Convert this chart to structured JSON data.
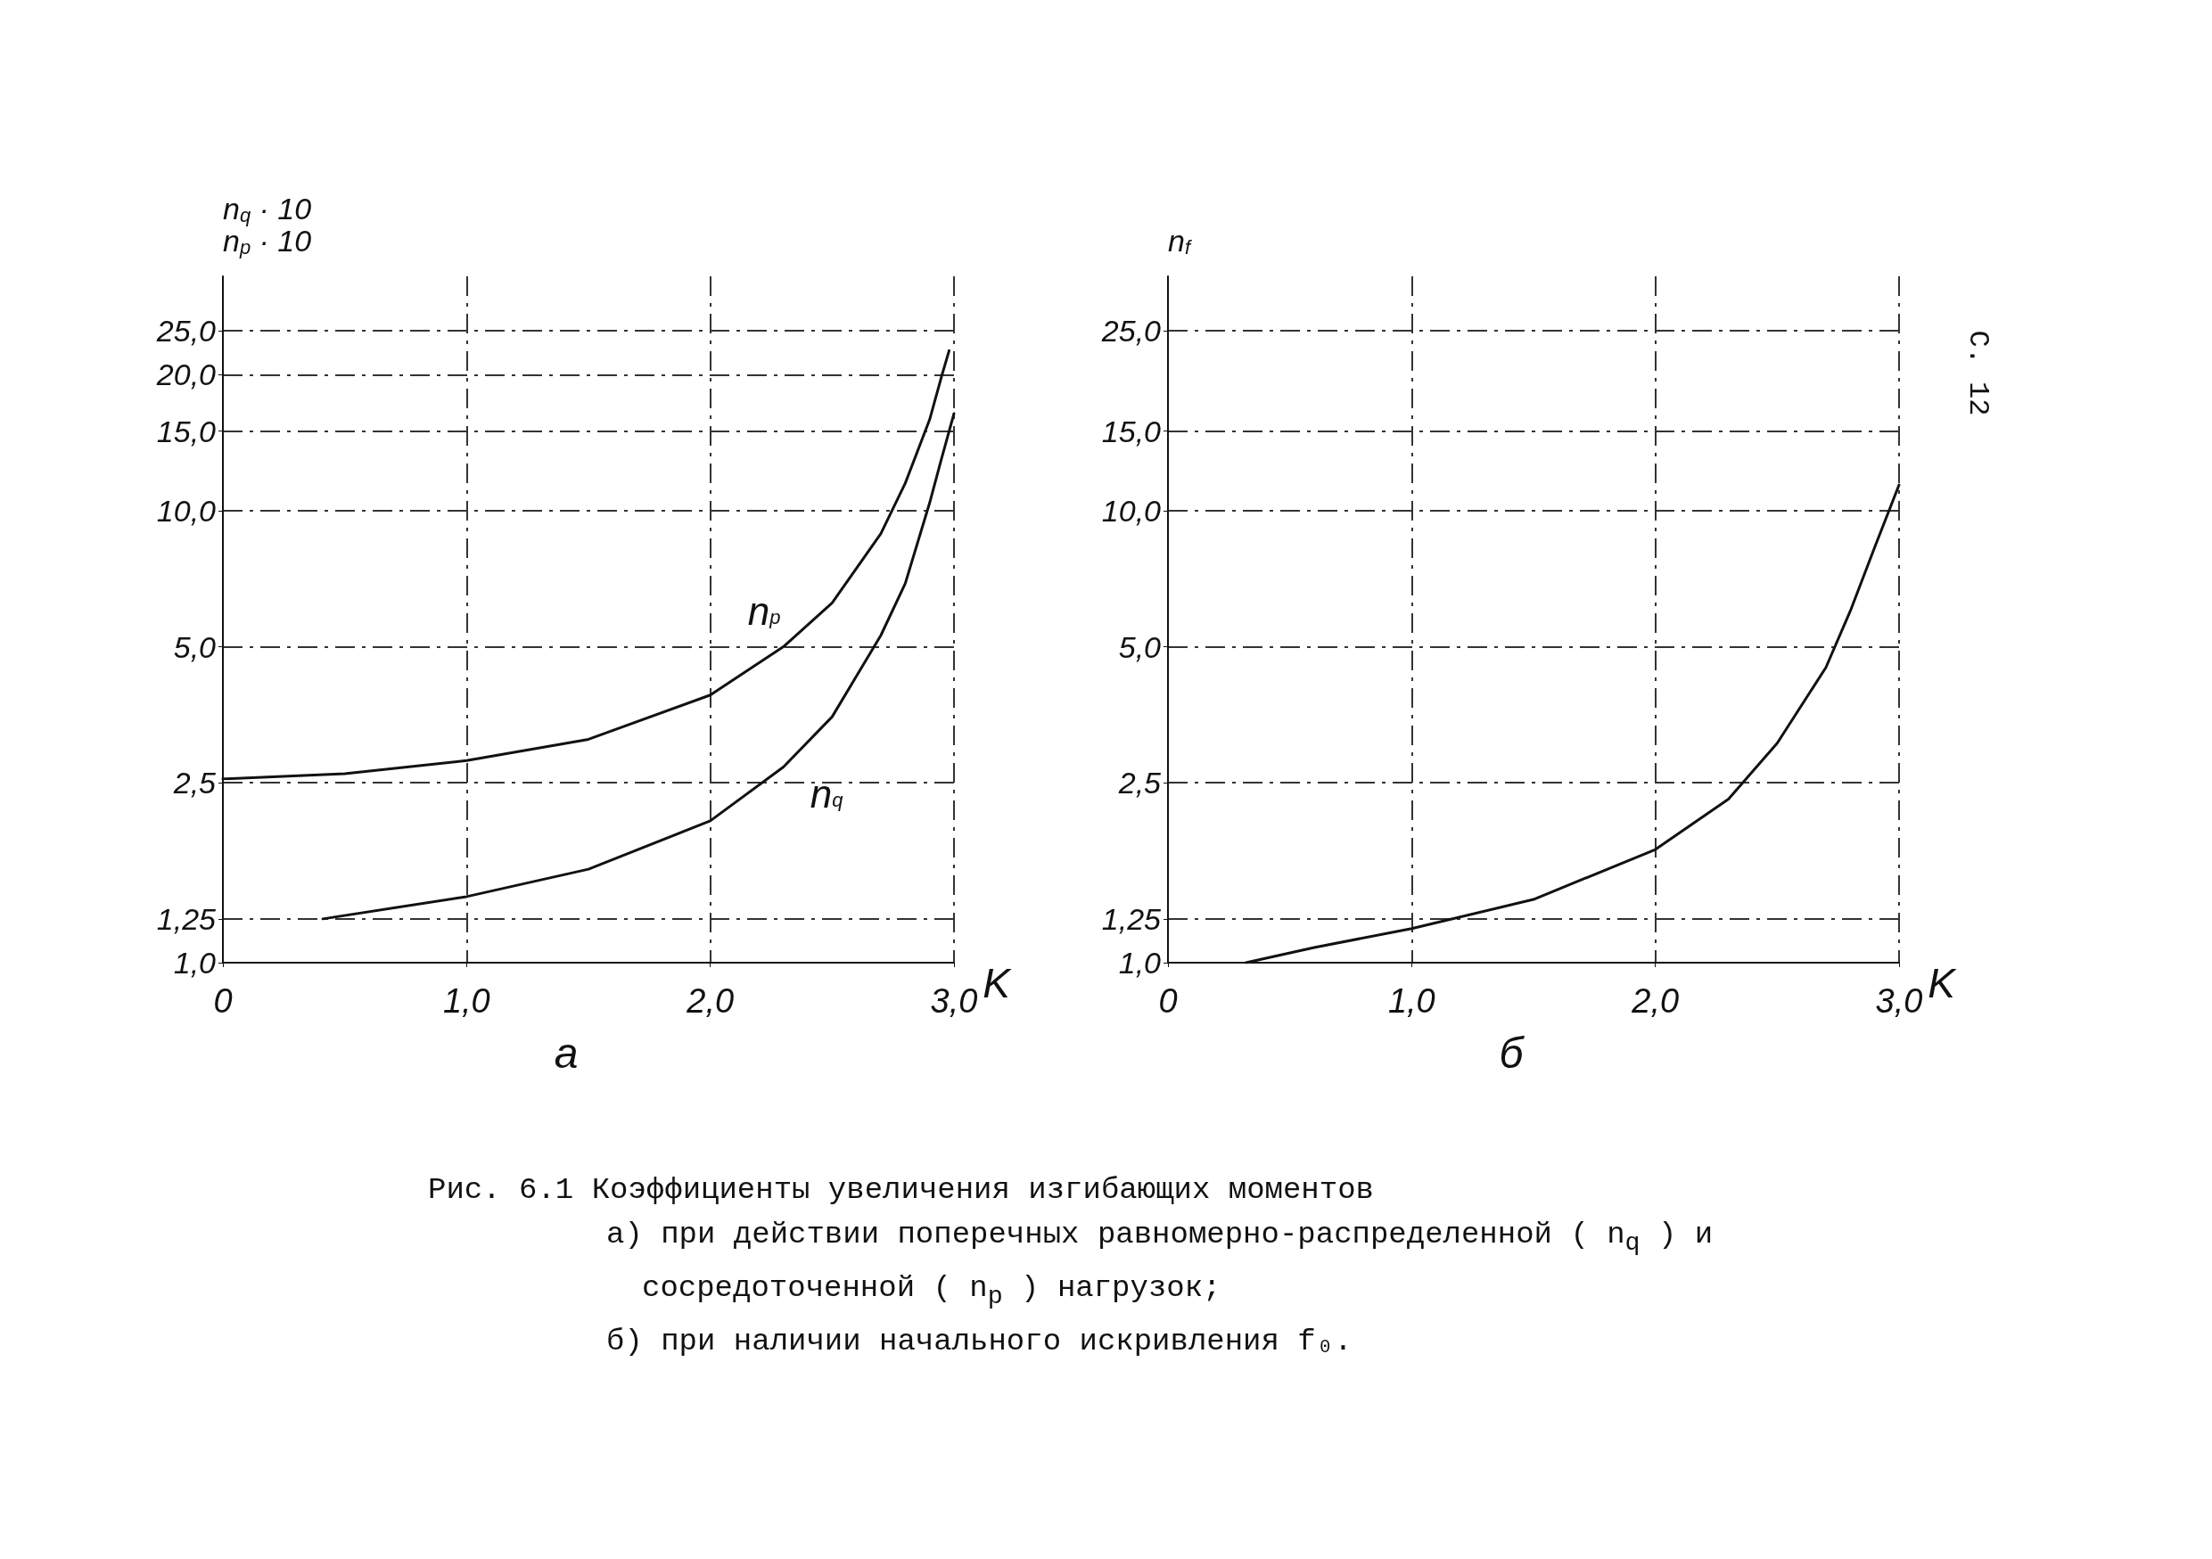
{
  "chart_data": [
    {
      "type": "line",
      "title": "а",
      "xlabel": "K",
      "ylabel": "n$_{q}$ · 10\nn$_{p}$ · 10",
      "log": "y",
      "grid": true,
      "marker": "none",
      "line_style": "solid",
      "xlim": [
        0,
        3
      ],
      "xticks": [
        0,
        {
          "value": 1,
          "label": "1,0"
        },
        {
          "value": 2,
          "label": "2,0"
        },
        {
          "value": 3,
          "label": "3,0"
        }
      ],
      "ylim": [
        1,
        33
      ],
      "yticks": [
        {
          "value": 1,
          "label": "1,0"
        },
        {
          "value": 1.25,
          "label": "1,25"
        },
        {
          "value": 2.5,
          "label": "2,5"
        },
        {
          "value": 5,
          "label": "5,0"
        },
        {
          "value": 10,
          "label": "10,0"
        },
        {
          "value": 15,
          "label": "15,0"
        },
        {
          "value": 20,
          "label": "20,0"
        },
        {
          "value": 25,
          "label": "25,0"
        }
      ],
      "series": [
        {
          "name": "n$_{p}$",
          "color": "#111111",
          "x": [
            0,
            0.5,
            1.0,
            1.5,
            2.0,
            2.3,
            2.5,
            2.7,
            2.8,
            2.9,
            2.95,
            2.98
          ],
          "values": [
            2.55,
            2.62,
            2.8,
            3.12,
            3.91,
            5.0,
            6.25,
            8.9,
            11.5,
            15.9,
            19.9,
            22.6
          ]
        },
        {
          "name": "n$_{q}$",
          "color": "#111111",
          "x": [
            0.41,
            1.0,
            1.5,
            2.0,
            2.3,
            2.5,
            2.7,
            2.8,
            2.9,
            2.95,
            3.0
          ],
          "values": [
            1.25,
            1.4,
            1.61,
            2.06,
            2.71,
            3.5,
            5.3,
            6.9,
            10.4,
            13.1,
            16.4
          ]
        }
      ],
      "annotations": [
        "Рис. 6.1  Коэффициенты увеличения изгибающих моментов",
        "а) при действии поперечных равномерно-распределенной ( n$_{q}$ ) и",
        "сосредоточенной ( n$_{p}$ ) нагрузок;",
        "б) при наличии начального искривления f₀."
      ]
    },
    {
      "type": "line",
      "title": "б",
      "xlabel": "K",
      "ylabel": "n$_{f}$",
      "log": "y",
      "grid": true,
      "marker": "none",
      "line_style": "solid",
      "xlim": [
        0,
        3
      ],
      "xticks": [
        0,
        {
          "value": 1,
          "label": "1,0"
        },
        {
          "value": 2,
          "label": "2,0"
        },
        {
          "value": 3,
          "label": "3,0"
        }
      ],
      "ylim": [
        1,
        33
      ],
      "yticks": [
        {
          "value": 1,
          "label": "1,0"
        },
        {
          "value": 1.25,
          "label": "1,25"
        },
        {
          "value": 2.5,
          "label": "2,5"
        },
        {
          "value": 5,
          "label": "5,0"
        },
        {
          "value": 10,
          "label": "10,0"
        },
        {
          "value": 15,
          "label": "15,0"
        },
        {
          "value": 25,
          "label": "25,0"
        }
      ],
      "series": [
        {
          "color": "#111111",
          "x": [
            0.32,
            0.6,
            1.0,
            1.5,
            2.0,
            2.3,
            2.5,
            2.7,
            2.8,
            2.9,
            3.0
          ],
          "values": [
            1.0,
            1.08,
            1.19,
            1.38,
            1.78,
            2.3,
            3.06,
            4.5,
            6.0,
            8.3,
            11.4
          ]
        }
      ],
      "annotations": [
        "С. 12"
      ]
    }
  ]
}
